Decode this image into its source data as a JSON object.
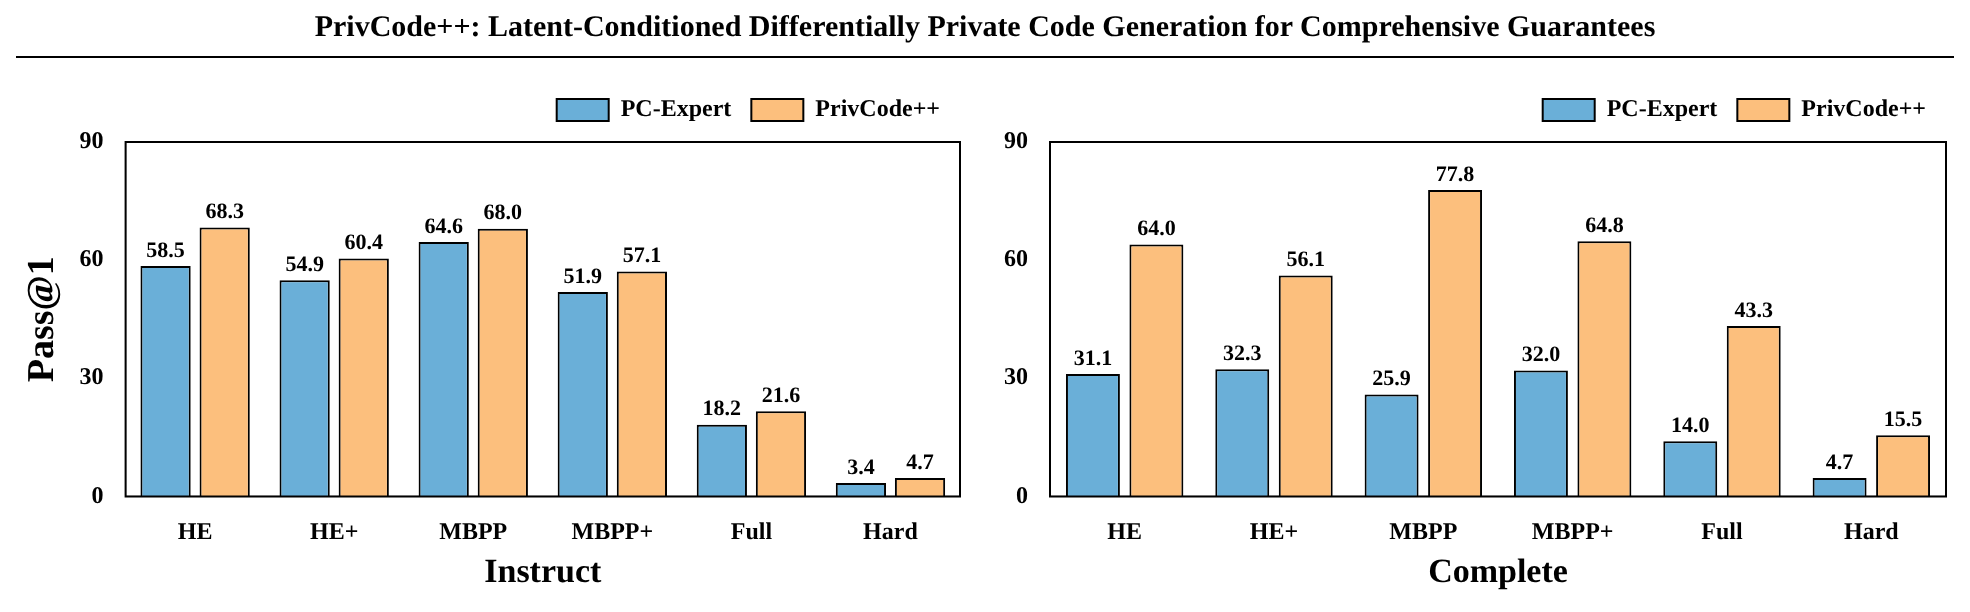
{
  "chart_data": [
    {
      "type": "bar",
      "title": "PrivCode++: Latent-Conditioned Differentially Private Code Generation for Comprehensive Guarantees",
      "xlabel": "Instruct",
      "ylabel": "Pass@1",
      "categories": [
        "HE",
        "HE+",
        "MBPP",
        "MBPP+",
        "Full",
        "Hard"
      ],
      "series": [
        {
          "name": "PC-Expert",
          "color": "#6aafd8",
          "values": [
            58.5,
            54.9,
            64.6,
            51.9,
            18.2,
            3.4
          ],
          "value_labels": [
            "58.5",
            "54.9",
            "64.6",
            "51.9",
            "18.2",
            "3.4"
          ]
        },
        {
          "name": "PrivCode++",
          "color": "#fcbf7d",
          "values": [
            68.3,
            60.4,
            68.0,
            57.1,
            21.6,
            4.7
          ],
          "value_labels": [
            "68.3",
            "60.4",
            "68.0",
            "57.1",
            "21.6",
            "4.7"
          ]
        }
      ],
      "ylim": [
        0,
        90
      ],
      "yticks": [
        0,
        30,
        60,
        90
      ],
      "legend": "top right",
      "grid": false
    },
    {
      "type": "bar",
      "xlabel": "Complete",
      "categories": [
        "HE",
        "HE+",
        "MBPP",
        "MBPP+",
        "Full",
        "Hard"
      ],
      "series": [
        {
          "name": "PC-Expert",
          "color": "#6aafd8",
          "values": [
            31.1,
            32.3,
            25.9,
            32.0,
            14.0,
            4.7
          ],
          "value_labels": [
            "31.1",
            "32.3",
            "25.9",
            "32.0",
            "14.0",
            "4.7"
          ]
        },
        {
          "name": "PrivCode++",
          "color": "#fcbf7d",
          "values": [
            64.0,
            56.1,
            77.8,
            64.8,
            43.3,
            15.5
          ],
          "value_labels": [
            "64.0",
            "56.1",
            "77.8",
            "64.8",
            "43.3",
            "15.5"
          ]
        }
      ],
      "ylim": [
        0,
        90
      ],
      "yticks": [
        0,
        30,
        60,
        90
      ],
      "legend": "top right",
      "grid": false
    }
  ]
}
